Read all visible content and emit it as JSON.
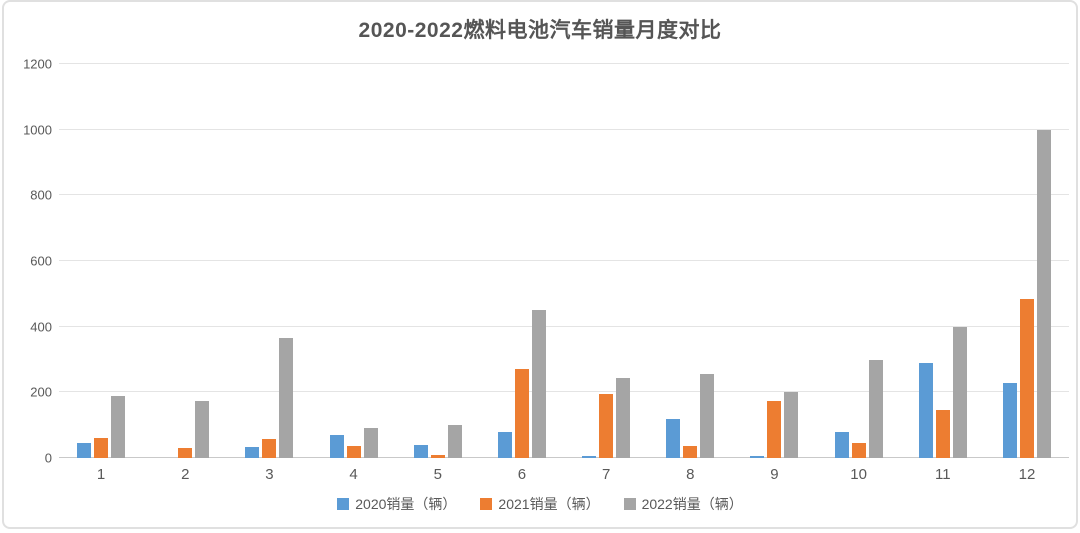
{
  "chart_data": {
    "type": "bar",
    "title": "2020-2022燃料电池汽车销量月度对比",
    "categories": [
      "1",
      "2",
      "3",
      "4",
      "5",
      "6",
      "7",
      "8",
      "9",
      "10",
      "11",
      "12"
    ],
    "series": [
      {
        "name": "2020销量（辆）",
        "color": "#5B9BD5",
        "values": [
          45,
          0,
          35,
          70,
          41,
          80,
          5,
          120,
          6,
          80,
          290,
          228
        ]
      },
      {
        "name": "2021销量（辆）",
        "color": "#ED7D31",
        "values": [
          62,
          30,
          58,
          38,
          10,
          270,
          195,
          38,
          175,
          47,
          145,
          485
        ]
      },
      {
        "name": "2022销量（辆）",
        "color": "#A5A5A5",
        "values": [
          190,
          175,
          365,
          90,
          100,
          450,
          245,
          255,
          200,
          300,
          400,
          1000
        ]
      }
    ],
    "xlabel": "",
    "ylabel": "",
    "ylim": [
      0,
      1200
    ],
    "y_tick_step": 200,
    "y_ticks": [
      "0",
      "200",
      "400",
      "600",
      "800",
      "1000",
      "1200"
    ],
    "grid": "horizontal",
    "legend_position": "bottom"
  },
  "style_colors": {
    "title_text": "#555555",
    "axis_text": "#595959",
    "gridline": "#e4e4e4",
    "baseline": "#c9c9c9",
    "card_border": "#e0e0e0",
    "background": "#ffffff"
  }
}
